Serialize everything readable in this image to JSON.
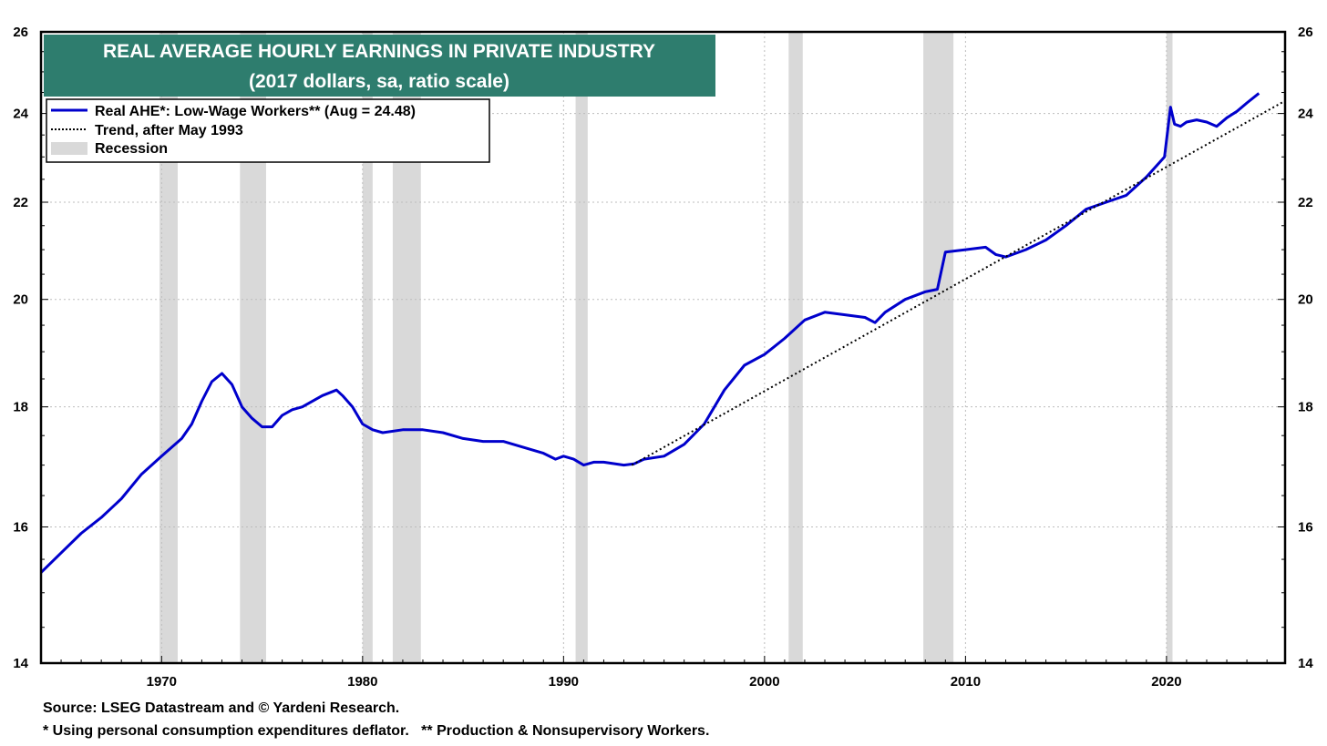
{
  "chart_data": {
    "type": "line",
    "title": "REAL AVERAGE HOURLY EARNINGS IN PRIVATE INDUSTRY",
    "subtitle": "(2017 dollars, sa, ratio scale)",
    "xlim": [
      1964.0,
      2025.9
    ],
    "ylim": [
      14,
      26
    ],
    "yscale": "log",
    "x_ticks": [
      1970,
      1980,
      1990,
      2000,
      2010,
      2020
    ],
    "y_ticks": [
      14,
      16,
      18,
      20,
      22,
      24,
      26
    ],
    "grid": true,
    "legend_position": "top-left",
    "legend": [
      "Real AHE*: Low-Wage Workers** (Aug = 24.48)",
      "Trend, after May 1993",
      "Recession"
    ],
    "colors": {
      "series": "#0000cc",
      "trend": "#000000",
      "recession": "#d9d9d9",
      "title_bg": "#2e7d6e"
    },
    "recessions": [
      [
        1969.9,
        1970.8
      ],
      [
        1973.9,
        1975.2
      ],
      [
        1980.0,
        1980.5
      ],
      [
        1981.5,
        1982.9
      ],
      [
        1990.6,
        1991.2
      ],
      [
        2001.2,
        2001.9
      ],
      [
        2007.9,
        2009.4
      ],
      [
        2020.0,
        2020.3
      ]
    ],
    "series": [
      {
        "name": "Real AHE*: Low-Wage Workers** (Aug = 24.48)",
        "style": "solid",
        "x": [
          1964.0,
          1965.0,
          1966.0,
          1967.0,
          1968.0,
          1969.0,
          1970.0,
          1970.5,
          1971.0,
          1971.5,
          1972.0,
          1972.5,
          1973.0,
          1973.5,
          1974.0,
          1974.5,
          1975.0,
          1975.5,
          1976.0,
          1976.5,
          1977.0,
          1978.0,
          1978.7,
          1979.0,
          1979.5,
          1980.0,
          1980.5,
          1981.0,
          1982.0,
          1983.0,
          1984.0,
          1985.0,
          1986.0,
          1987.0,
          1988.0,
          1989.0,
          1989.6,
          1990.0,
          1990.5,
          1991.0,
          1991.5,
          1992.0,
          1993.0,
          1993.5,
          1994.0,
          1995.0,
          1996.0,
          1997.0,
          1998.0,
          1999.0,
          2000.0,
          2001.0,
          2002.0,
          2003.0,
          2004.0,
          2005.0,
          2005.5,
          2006.0,
          2007.0,
          2008.0,
          2008.6,
          2009.0,
          2010.0,
          2011.0,
          2011.5,
          2012.0,
          2013.0,
          2014.0,
          2015.0,
          2016.0,
          2017.0,
          2018.0,
          2019.0,
          2019.9,
          2020.2,
          2020.4,
          2020.7,
          2021.0,
          2021.5,
          2022.0,
          2022.5,
          2023.0,
          2023.5,
          2024.0,
          2024.6
        ],
        "y": [
          15.3,
          15.6,
          15.9,
          16.15,
          16.45,
          16.85,
          17.15,
          17.3,
          17.45,
          17.7,
          18.1,
          18.45,
          18.6,
          18.4,
          18.0,
          17.8,
          17.65,
          17.65,
          17.85,
          17.95,
          18.0,
          18.2,
          18.3,
          18.2,
          18.0,
          17.7,
          17.6,
          17.55,
          17.6,
          17.6,
          17.55,
          17.45,
          17.4,
          17.4,
          17.3,
          17.2,
          17.1,
          17.15,
          17.1,
          17.0,
          17.05,
          17.05,
          17.0,
          17.02,
          17.1,
          17.15,
          17.35,
          17.7,
          18.3,
          18.75,
          18.95,
          19.25,
          19.6,
          19.75,
          19.7,
          19.65,
          19.55,
          19.75,
          20.0,
          20.15,
          20.2,
          20.95,
          21.0,
          21.05,
          20.9,
          20.85,
          21.0,
          21.2,
          21.5,
          21.85,
          22.0,
          22.15,
          22.55,
          23.0,
          24.15,
          23.75,
          23.7,
          23.8,
          23.85,
          23.8,
          23.7,
          23.9,
          24.05,
          24.25,
          24.48
        ]
      },
      {
        "name": "Trend, after May 1993",
        "style": "dotted",
        "x": [
          1993.4,
          2025.9
        ],
        "y": [
          17.0,
          24.3
        ]
      }
    ]
  },
  "footer": {
    "source": "Source: LSEG Datastream and © Yardeni Research.",
    "notes": "* Using personal consumption expenditures deflator.   ** Production & Nonsupervisory Workers."
  }
}
